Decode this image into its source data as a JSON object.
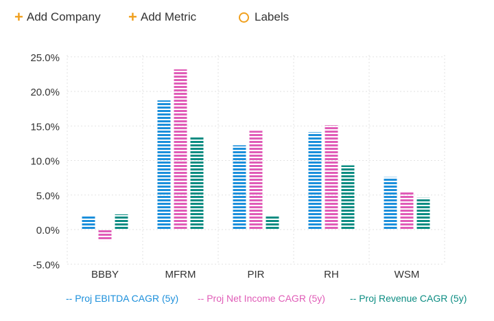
{
  "toolbar": {
    "add_company_label": "Add Company",
    "add_metric_label": "Add Metric",
    "labels_label": "Labels"
  },
  "colors": {
    "accent": "#f0a01e",
    "ebitda": "#1b8fdb",
    "net_income": "#e05cb7",
    "revenue": "#0b8c82",
    "grid": "#e2e2e2",
    "text": "#333333"
  },
  "chart_data": {
    "type": "bar",
    "categories": [
      "BBBY",
      "MFRM",
      "PIR",
      "RH",
      "WSM"
    ],
    "series": [
      {
        "name": "Proj EBITDA CAGR (5y)",
        "values": [
          1.9,
          18.7,
          12.2,
          14.1,
          7.6
        ]
      },
      {
        "name": "Proj Net Income CAGR (5y)",
        "values": [
          -1.6,
          23.2,
          14.3,
          15.1,
          5.5
        ]
      },
      {
        "name": "Proj Revenue CAGR (5y)",
        "values": [
          2.2,
          13.5,
          1.9,
          9.3,
          4.6
        ]
      }
    ],
    "yticks": [
      "25.0%",
      "20.0%",
      "15.0%",
      "10.0%",
      "5.0%",
      "0.0%",
      "-5.0%"
    ],
    "ylim": [
      -5,
      25
    ],
    "xlabel": "",
    "ylabel": "",
    "grid": true,
    "legend_position": "bottom",
    "legend_labels": [
      "-- Proj EBITDA CAGR (5y)",
      "-- Proj Net Income CAGR (5y)",
      "-- Proj Revenue CAGR (5y)"
    ]
  }
}
